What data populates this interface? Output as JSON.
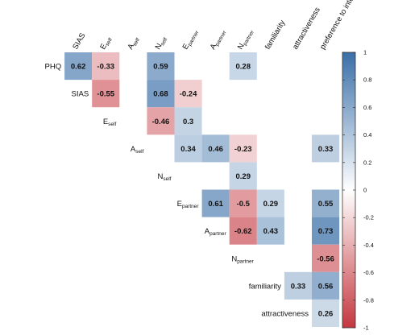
{
  "chart_data": {
    "type": "heatmap",
    "variables": [
      {
        "main": "PHQ",
        "sub": ""
      },
      {
        "main": "SIAS",
        "sub": ""
      },
      {
        "main": "E",
        "sub": "self"
      },
      {
        "main": "A",
        "sub": "self"
      },
      {
        "main": "N",
        "sub": "self"
      },
      {
        "main": "E",
        "sub": "partner"
      },
      {
        "main": "A",
        "sub": "partner"
      },
      {
        "main": "N",
        "sub": "partner"
      },
      {
        "main": "familiarity",
        "sub": ""
      },
      {
        "main": "attractiveness",
        "sub": ""
      },
      {
        "main": "preference to interact",
        "sub": ""
      }
    ],
    "cells": [
      {
        "row": 0,
        "col": 1,
        "value": 0.62
      },
      {
        "row": 0,
        "col": 2,
        "value": -0.33
      },
      {
        "row": 0,
        "col": 4,
        "value": 0.59
      },
      {
        "row": 0,
        "col": 7,
        "value": 0.28
      },
      {
        "row": 1,
        "col": 2,
        "value": -0.55
      },
      {
        "row": 1,
        "col": 4,
        "value": 0.68
      },
      {
        "row": 1,
        "col": 5,
        "value": -0.24
      },
      {
        "row": 2,
        "col": 4,
        "value": -0.46
      },
      {
        "row": 2,
        "col": 5,
        "value": 0.3
      },
      {
        "row": 3,
        "col": 5,
        "value": 0.34
      },
      {
        "row": 3,
        "col": 6,
        "value": 0.46
      },
      {
        "row": 3,
        "col": 7,
        "value": -0.23
      },
      {
        "row": 3,
        "col": 10,
        "value": 0.33
      },
      {
        "row": 4,
        "col": 7,
        "value": 0.29
      },
      {
        "row": 5,
        "col": 6,
        "value": 0.61
      },
      {
        "row": 5,
        "col": 7,
        "value": -0.5
      },
      {
        "row": 5,
        "col": 8,
        "value": 0.29
      },
      {
        "row": 5,
        "col": 10,
        "value": 0.55
      },
      {
        "row": 6,
        "col": 7,
        "value": -0.62
      },
      {
        "row": 6,
        "col": 8,
        "value": 0.43
      },
      {
        "row": 6,
        "col": 10,
        "value": 0.73
      },
      {
        "row": 7,
        "col": 10,
        "value": -0.56
      },
      {
        "row": 8,
        "col": 9,
        "value": 0.33
      },
      {
        "row": 8,
        "col": 10,
        "value": 0.56
      },
      {
        "row": 9,
        "col": 10,
        "value": 0.26
      }
    ],
    "colorbar": {
      "range": [
        -1,
        1
      ],
      "ticks": [
        "1",
        "0.8",
        "0.6",
        "0.4",
        "0.2",
        "0",
        "-0.2",
        "-0.4",
        "-0.6",
        "-0.8",
        "-1"
      ]
    },
    "colors": {
      "negative_end": "#c4373f",
      "neutral": "#ffffff",
      "positive_end": "#3a6fa8"
    },
    "grid": false,
    "legend": "right"
  }
}
